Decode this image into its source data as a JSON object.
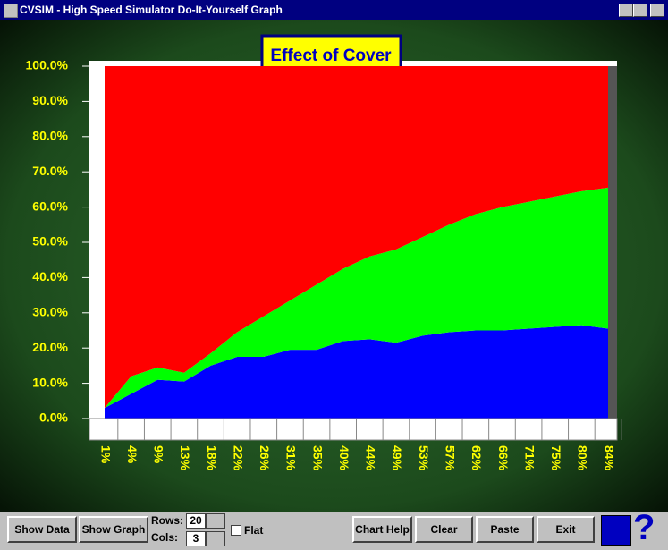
{
  "window": {
    "title": "CVSIM - High Speed Simulator Do-It-Yourself Graph"
  },
  "toolbar": {
    "show_data": "Show Data",
    "show_graph": "Show Graph",
    "rows_label": "Rows:",
    "rows_value": 20,
    "cols_label": "Cols:",
    "cols_value": 3,
    "flat": "Flat",
    "chart_help": "Chart Help",
    "clear": "Clear",
    "paste": "Paste",
    "exit": "Exit",
    "help_icon": "?"
  },
  "chart_data": {
    "type": "area",
    "stacked": true,
    "title": "Effect of Cover",
    "categories": [
      "1%",
      "4%",
      "9%",
      "13%",
      "18%",
      "22%",
      "26%",
      "31%",
      "35%",
      "40%",
      "44%",
      "49%",
      "53%",
      "57%",
      "62%",
      "66%",
      "71%",
      "75%",
      "80%",
      "84%"
    ],
    "series": [
      {
        "color": "#0000ff",
        "values": [
          3,
          7,
          11,
          10.5,
          15,
          17.5,
          17.5,
          19.5,
          19.5,
          22,
          22.5,
          21.5,
          23.5,
          24.5,
          25,
          25,
          25.5,
          26,
          26.5,
          25.5
        ]
      },
      {
        "color": "#00ff00",
        "values": [
          0,
          5,
          3.5,
          2.5,
          3.5,
          7,
          11.5,
          14,
          18.5,
          20.5,
          23.5,
          26.5,
          28,
          30.5,
          33,
          35,
          36,
          37,
          38,
          40
        ]
      },
      {
        "color": "#ff0000",
        "values": [
          97,
          88,
          85.5,
          87,
          81.5,
          75.5,
          71,
          66.5,
          62,
          57.5,
          54,
          52,
          48.5,
          45,
          42,
          40,
          38.5,
          37,
          35.5,
          34.5
        ]
      }
    ],
    "ylim": [
      0,
      100
    ],
    "yticks": [
      {
        "value": 0,
        "label": "0.0%"
      },
      {
        "value": 10,
        "label": "10.0%"
      },
      {
        "value": 20,
        "label": "20.0%"
      },
      {
        "value": 30,
        "label": "30.0%"
      },
      {
        "value": 40,
        "label": "40.0%"
      },
      {
        "value": 50,
        "label": "50.0%"
      },
      {
        "value": 60,
        "label": "60.0%"
      },
      {
        "value": 70,
        "label": "70.0%"
      },
      {
        "value": 80,
        "label": "80.0%"
      },
      {
        "value": 90,
        "label": "90.0%"
      },
      {
        "value": 100,
        "label": "100.0%"
      }
    ]
  }
}
